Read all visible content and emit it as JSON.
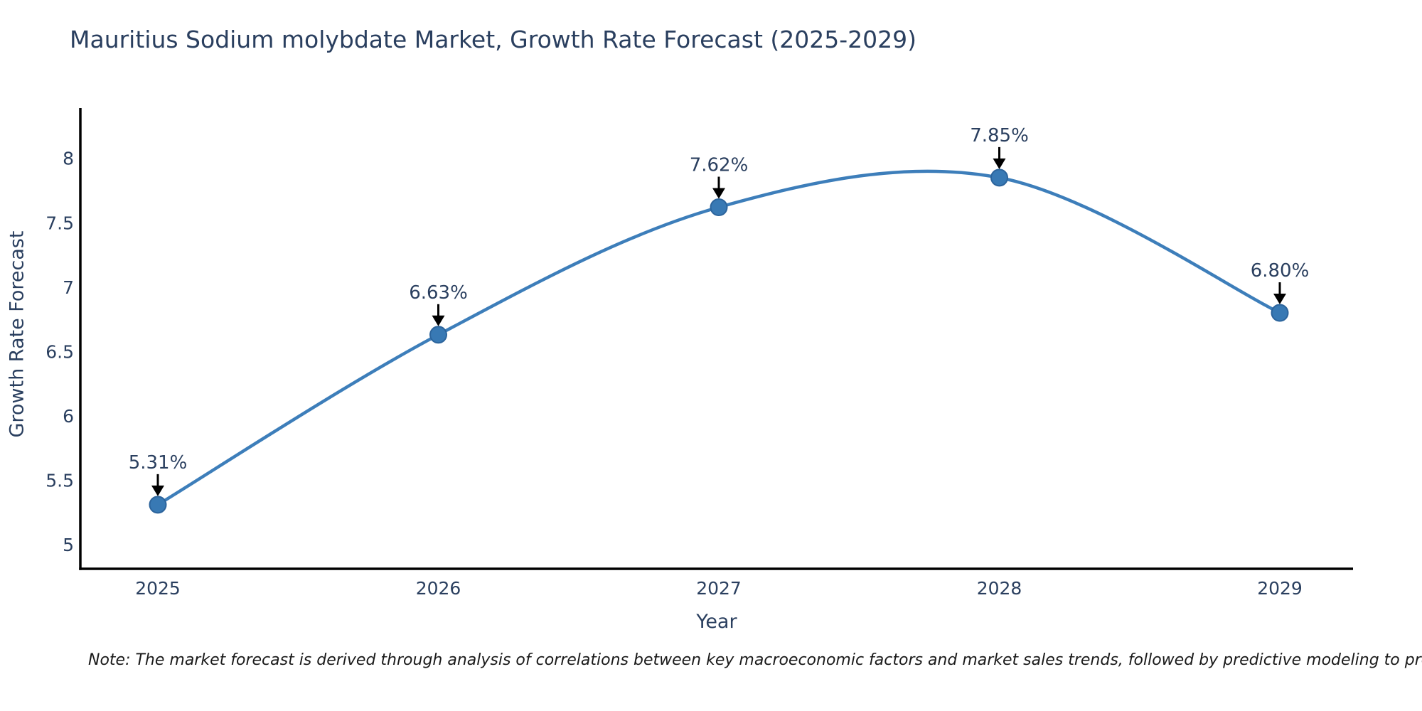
{
  "note": {
    "text": "Note: The market forecast is derived through analysis of correlations between key macroeconomic factors and market sales trends, followed by predictive modeling to project future sales"
  },
  "chart_data": {
    "type": "line",
    "title": "Mauritius Sodium molybdate Market, Growth Rate Forecast (2025-2029)",
    "xlabel": "Year",
    "ylabel": "Growth Rate Forecast",
    "categories": [
      "2025",
      "2026",
      "2027",
      "2028",
      "2029"
    ],
    "series": [
      {
        "name": "Growth Rate Forecast",
        "values": [
          5.31,
          6.63,
          7.62,
          7.85,
          6.8
        ],
        "point_labels": [
          "5.31%",
          "6.63%",
          "7.62%",
          "7.85%",
          "6.80%"
        ]
      }
    ],
    "yticks": [
      5,
      5.5,
      6,
      6.5,
      7,
      7.5,
      8
    ],
    "ylim": [
      4.81,
      8.38
    ],
    "grid": false,
    "legend_position": "none",
    "line_shape": "spline",
    "annotations": "arrow-down-to-point",
    "colors": {
      "line": "#3d7eba",
      "marker_fill": "#3879b4",
      "marker_edge": "#2c649c",
      "annotation_arrow": "#000000",
      "axis": "#000000",
      "label_text": "#2a3f5f",
      "note_text": "#1a1a1a",
      "background": "#ffffff"
    }
  }
}
